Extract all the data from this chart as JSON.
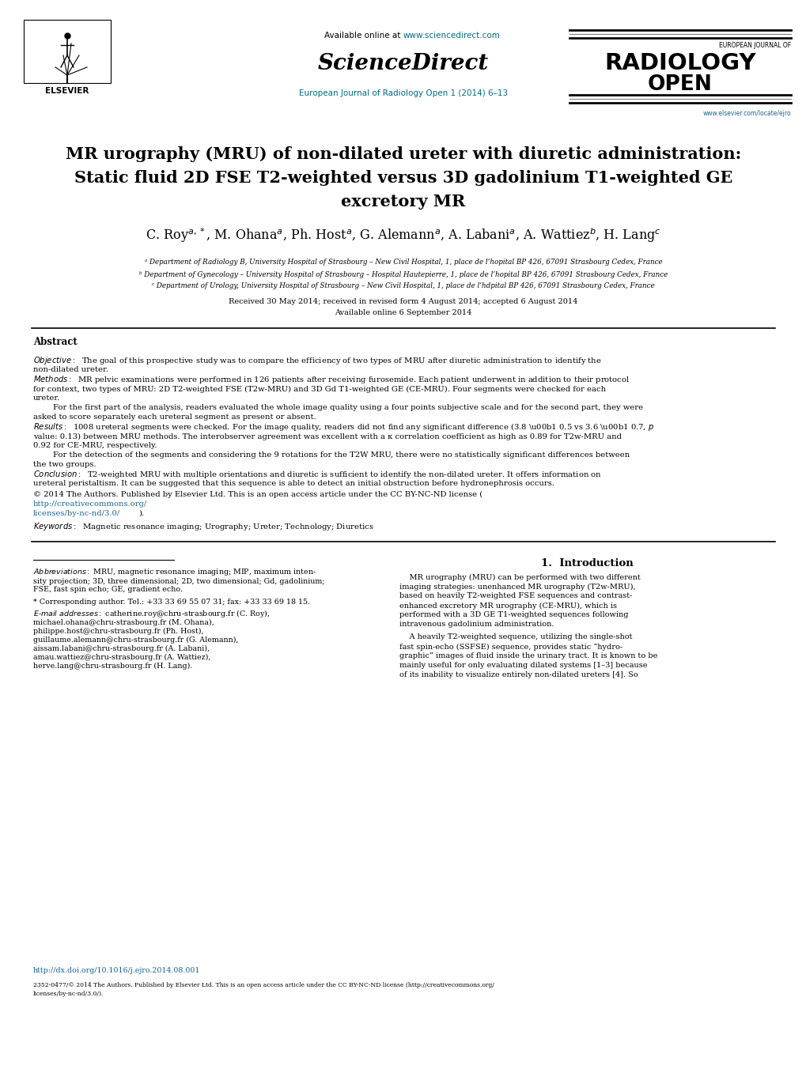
{
  "page_bg": "#ffffff",
  "title_line1": "MR urography (MRU) of non-dilated ureter with diuretic administration:",
  "title_line2": "Static fluid 2D FSE T2-weighted versus 3D gadolinium T1-weighted GE",
  "title_line3": "excretory MR",
  "affil_a": "ᵃ Department of Radiology B, University Hospital of Strasbourg – New Civil Hospital, 1, place de l’hopital BP 426, 67091 Strasbourg Cedex, France",
  "affil_b": "ᵇ Department of Gynecology – University Hospital of Strasbourg – Hospital Hautepierre, 1, place de l’hopital BP 426, 67091 Strasbourg Cedex, France",
  "affil_c": "ᶜ Department of Urology, University Hospital of Strasbourg – New Civil Hospital, 1, place de l’hdpital BP 426, 67091 Strasbourg Cedex, France",
  "received": "Received 30 May 2014; received in revised form 4 August 2014; accepted 6 August 2014",
  "available_online": "Available online 6 September 2014",
  "doi_text": "http://dx.doi.org/10.1016/j.ejro.2014.08.001",
  "issn_line1": "2352-0477/© 2014 The Authors. Published by Elsevier Ltd. This is an open access article under the CC BY-NC-ND license (http://creativecommons.org/",
  "issn_line2": "licenses/by-nc-nd/3.0/).",
  "colors": {
    "black": "#000000",
    "blue_link": "#1a6496",
    "teal_link": "#006B8A"
  }
}
